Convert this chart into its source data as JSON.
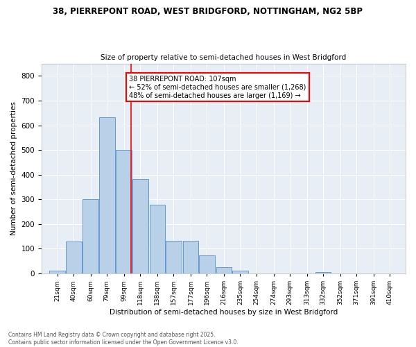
{
  "title1": "38, PIERREPONT ROAD, WEST BRIDGFORD, NOTTINGHAM, NG2 5BP",
  "title2": "Size of property relative to semi-detached houses in West Bridgford",
  "xlabel": "Distribution of semi-detached houses by size in West Bridgford",
  "ylabel": "Number of semi-detached properties",
  "bar_labels": [
    "21sqm",
    "40sqm",
    "60sqm",
    "79sqm",
    "99sqm",
    "118sqm",
    "138sqm",
    "157sqm",
    "177sqm",
    "196sqm",
    "216sqm",
    "235sqm",
    "254sqm",
    "274sqm",
    "293sqm",
    "313sqm",
    "332sqm",
    "352sqm",
    "371sqm",
    "391sqm",
    "410sqm"
  ],
  "bar_values": [
    10,
    128,
    300,
    632,
    500,
    383,
    278,
    131,
    131,
    72,
    25,
    12,
    0,
    0,
    0,
    0,
    5,
    0,
    0,
    0,
    0
  ],
  "bar_color": "#b8d0e8",
  "bar_edge_color": "#6699cc",
  "property_line_x": 107,
  "property_line_color": "red",
  "annotation_title": "38 PIERREPONT ROAD: 107sqm",
  "annotation_line1": "← 52% of semi-detached houses are smaller (1,268)",
  "annotation_line2": "48% of semi-detached houses are larger (1,169) →",
  "ylim": [
    0,
    850
  ],
  "yticks": [
    0,
    100,
    200,
    300,
    400,
    500,
    600,
    700,
    800
  ],
  "background_color": "#e8eef6",
  "footer_line1": "Contains HM Land Registry data © Crown copyright and database right 2025.",
  "footer_line2": "Contains public sector information licensed under the Open Government Licence v3.0.",
  "tick_positions": [
    21,
    40,
    60,
    79,
    99,
    118,
    138,
    157,
    177,
    196,
    216,
    235,
    254,
    274,
    293,
    313,
    332,
    352,
    371,
    391,
    410
  ]
}
